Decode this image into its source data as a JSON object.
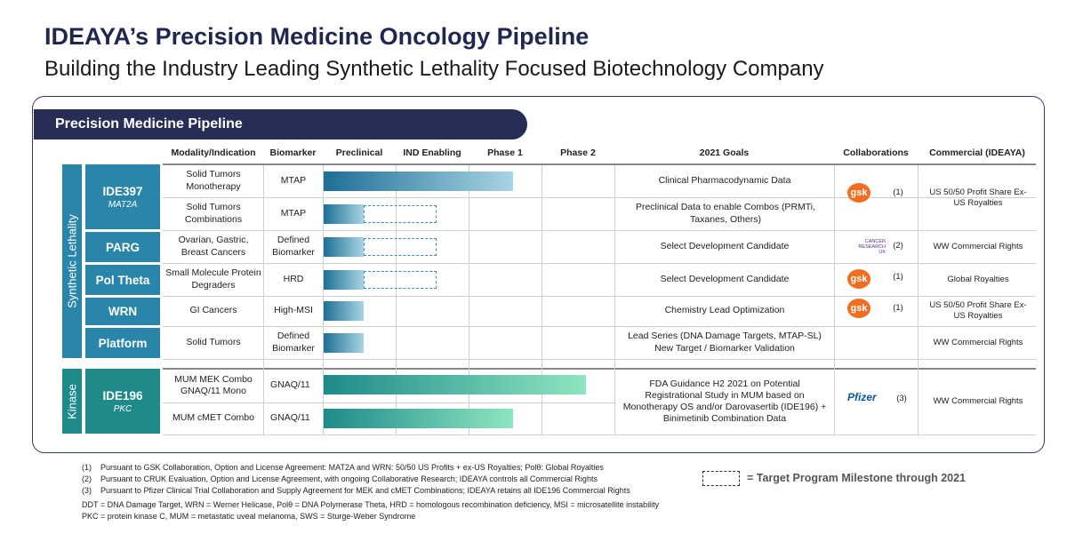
{
  "title": "IDEAYA’s Precision Medicine Oncology Pipeline",
  "subtitle": "Building the Industry Leading Synthetic Lethality Focused Biotechnology Company",
  "banner": "Precision Medicine Pipeline",
  "headers": {
    "modality": "Modality/Indication",
    "biomarker": "Biomarker",
    "preclinical": "Preclinical",
    "ind": "IND Enabling",
    "phase1": "Phase 1",
    "phase2": "Phase 2",
    "goals": "2021 Goals",
    "collab": "Collaborations",
    "commercial": "Commercial (IDEAYA)"
  },
  "groups": {
    "sl": "Synthetic Lethality",
    "kinase": "Kinase"
  },
  "programs": {
    "ide397": {
      "name": "IDE397",
      "target": "MAT2A"
    },
    "parg": {
      "name": "PARG"
    },
    "poltheta": {
      "name": "Pol Theta"
    },
    "wrn": {
      "name": "WRN"
    },
    "platform": {
      "name": "Platform"
    },
    "ide196": {
      "name": "IDE196",
      "target": "PKC"
    }
  },
  "rows": [
    {
      "modality": "Solid Tumors Monotherapy",
      "biomarker": "MTAP",
      "goal": "Clinical Pharmacodynamic Data",
      "progress_stage": 2.6
    },
    {
      "modality": "Solid Tumors Combinations",
      "biomarker": "MTAP",
      "goal": "Preclinical Data to enable Combos (PRMTi, Taxanes, Others)",
      "progress_stage": 0.55,
      "target_stage": 1.55
    },
    {
      "modality": "Ovarian, Gastric, Breast Cancers",
      "biomarker": "Defined Biomarker",
      "goal": "Select Development Candidate",
      "progress_stage": 0.55,
      "target_stage": 1.55
    },
    {
      "modality": "Small Molecule Protein Degraders",
      "biomarker": "HRD",
      "goal": "Select Development Candidate",
      "progress_stage": 0.55,
      "target_stage": 1.55
    },
    {
      "modality": "GI Cancers",
      "biomarker": "High-MSI",
      "goal": "Chemistry Lead Optimization",
      "progress_stage": 0.55
    },
    {
      "modality": "Solid Tumors",
      "biomarker": "Defined Biomarker",
      "goal": "Lead Series (DNA Damage Targets, MTAP-SL) New Target / Biomarker Validation",
      "progress_stage": 0.55
    },
    {
      "modality": "MUM MEK Combo GNAQ/11 Mono",
      "biomarker": "GNAQ/11",
      "progress_stage": 3.6
    },
    {
      "modality": "MUM cMET Combo",
      "biomarker": "GNAQ/11",
      "progress_stage": 2.6
    }
  ],
  "ide196_goal": "FDA Guidance H2 2021 on Potential Registrational Study in MUM based on Monotherapy OS and/or Darovasertib (IDE196) + Binimetinib Combination Data",
  "collaborations": {
    "gsk1": {
      "logo": "gsk",
      "note": "(1)"
    },
    "cruk": {
      "logo_line1": "CANCER",
      "logo_line2": "RESEARCH",
      "logo_line3": "UK",
      "note": "(2)"
    },
    "gsk2": {
      "logo": "gsk",
      "note": "(1)"
    },
    "gsk3": {
      "logo": "gsk",
      "note": "(1)"
    },
    "pfizer": {
      "logo": "Pfizer",
      "note": "(3)"
    }
  },
  "commercial": {
    "ide397": "US 50/50 Profit Share Ex-US Royalties",
    "parg": "WW Commercial Rights",
    "poltheta": "Global Royalties",
    "wrn": "US 50/50 Profit Share Ex-US Royalties",
    "platform": "WW Commercial Rights",
    "ide196": "WW Commercial Rights"
  },
  "legend": "= Target Program Milestone through 2021",
  "footnotes": [
    "(1)    Pursuant to GSK Collaboration, Option and License Agreement: MAT2A and WRN: 50/50 US Profits + ex-US Royalties; Polθ: Global Royalties",
    "(2)    Pursuant to CRUK Evaluation, Option and License Agreement, with ongoing Collaborative Research; IDEAYA controls all Commercial Rights",
    "(3)    Pursuant to Pfizer Clinical Trial Collaboration and Supply Agreement for MEK and cMET Combinations; IDEAYA retains all IDE196 Commercial Rights"
  ],
  "abbreviations": [
    "DDT = DNA Damage Target, WRN = Werner Helicase, Polθ = DNA Polymerase Theta, HRD = homologous recombination deficiency, MSI = microsatellite instability",
    "PKC = protein kinase C, MUM = metastatic uveal melanoma, SWS = Sturge-Weber Syndrome"
  ],
  "colors": {
    "navy": "#272d55",
    "teal_blue": "#2a86a8",
    "kinase_green": "#1e8a8a",
    "gsk_orange": "#f36d21",
    "pfizer_blue": "#0b5aa8"
  }
}
